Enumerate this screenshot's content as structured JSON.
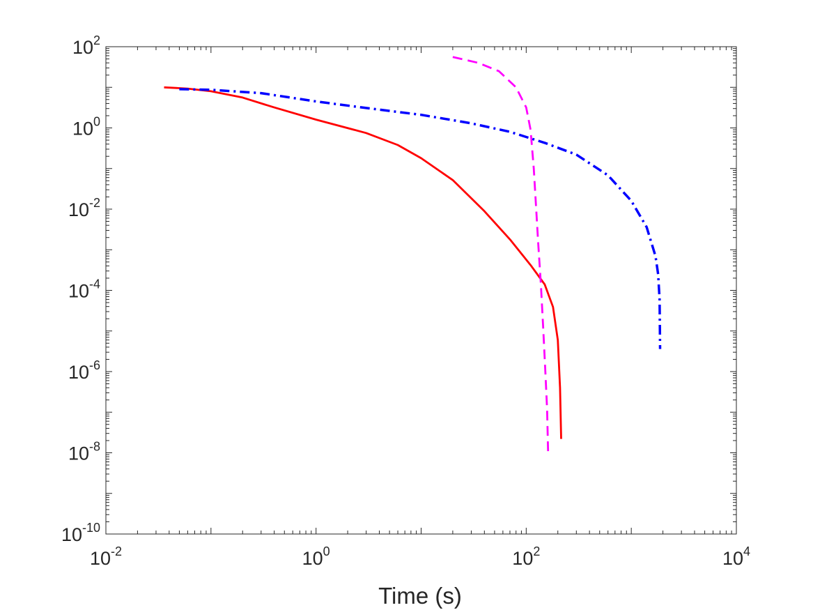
{
  "chart_data": {
    "type": "line",
    "title": "",
    "xlabel": "Time (s)",
    "ylabel": "",
    "xscale": "log",
    "yscale": "log",
    "xlim": [
      0.01,
      10000
    ],
    "ylim": [
      1e-10,
      100
    ],
    "grid": false,
    "legend": "none",
    "x_ticks": [
      {
        "value": 0.01,
        "base": "10",
        "exp": "-2"
      },
      {
        "value": 1,
        "base": "10",
        "exp": "0"
      },
      {
        "value": 100,
        "base": "10",
        "exp": "2"
      },
      {
        "value": 10000,
        "base": "10",
        "exp": "4"
      }
    ],
    "y_ticks": [
      {
        "value": 1e-10,
        "base": "10",
        "exp": "-10"
      },
      {
        "value": 1e-08,
        "base": "10",
        "exp": "-8"
      },
      {
        "value": 1e-06,
        "base": "10",
        "exp": "-6"
      },
      {
        "value": 0.0001,
        "base": "10",
        "exp": "-4"
      },
      {
        "value": 0.01,
        "base": "10",
        "exp": "-2"
      },
      {
        "value": 1,
        "base": "10",
        "exp": "0"
      },
      {
        "value": 100,
        "base": "10",
        "exp": "2"
      }
    ],
    "series": [
      {
        "style": "solid",
        "color": "#ff0000",
        "points": [
          [
            0.0358,
            10.0
          ],
          [
            0.06,
            9.3
          ],
          [
            0.1,
            8.0
          ],
          [
            0.2,
            5.6
          ],
          [
            0.4,
            3.2
          ],
          [
            1,
            1.6
          ],
          [
            3,
            0.75
          ],
          [
            6,
            0.38
          ],
          [
            10,
            0.18
          ],
          [
            20,
            0.052
          ],
          [
            40,
            0.0089
          ],
          [
            70,
            0.0018
          ],
          [
            110,
            0.00042
          ],
          [
            150,
            0.00014
          ],
          [
            180,
            3.9e-05
          ],
          [
            200,
            6e-06
          ],
          [
            210,
            4e-07
          ],
          [
            215,
            2.2e-08
          ]
        ]
      },
      {
        "style": "dashed",
        "color": "#ff00ff",
        "points": [
          [
            20,
            56
          ],
          [
            35,
            40
          ],
          [
            55,
            25
          ],
          [
            80,
            10
          ],
          [
            100,
            3.2
          ],
          [
            110,
            0.9
          ],
          [
            118,
            0.1
          ],
          [
            124,
            0.012
          ],
          [
            130,
            0.0015
          ],
          [
            138,
            0.00014
          ],
          [
            145,
            1.2e-05
          ],
          [
            152,
            1e-06
          ],
          [
            158,
            1.2e-07
          ],
          [
            162,
            8e-09
          ]
        ]
      },
      {
        "style": "dashdot",
        "color": "#0000ff",
        "points": [
          [
            0.05,
            9.0
          ],
          [
            0.1,
            8.7
          ],
          [
            0.3,
            7.2
          ],
          [
            1,
            4.5
          ],
          [
            3,
            3.1
          ],
          [
            10,
            2.1
          ],
          [
            30,
            1.3
          ],
          [
            70,
            0.8
          ],
          [
            150,
            0.43
          ],
          [
            300,
            0.22
          ],
          [
            600,
            0.068
          ],
          [
            1000,
            0.016
          ],
          [
            1400,
            0.0036
          ],
          [
            1700,
            0.0007
          ],
          [
            1800,
            0.00025
          ],
          [
            1860,
            6e-05
          ],
          [
            1880,
            3.6e-06
          ]
        ]
      }
    ]
  }
}
